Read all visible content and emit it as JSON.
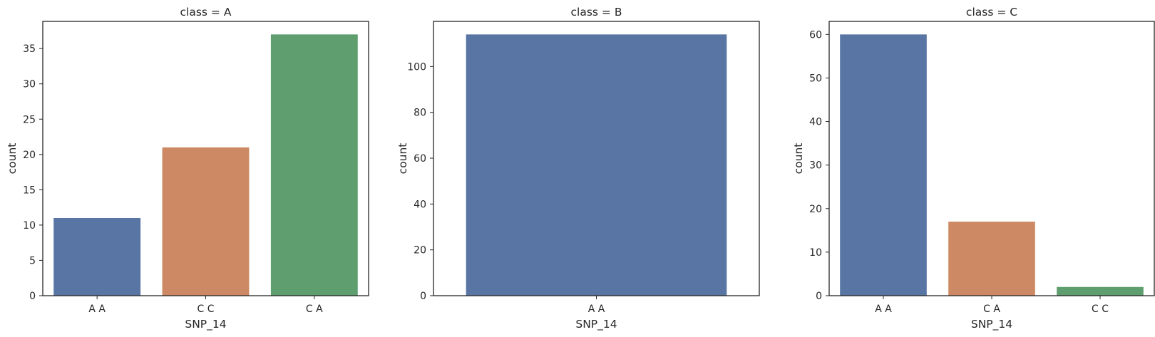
{
  "colors": {
    "AA": "#5875a4",
    "CC": "#cc8963",
    "CA": "#5f9e6e",
    "frame": "#262626",
    "text": "#262626"
  },
  "chart_data": [
    {
      "type": "bar",
      "title": "class = A",
      "xlabel": "SNP_14",
      "ylabel": "count",
      "categories": [
        "A A",
        "C C",
        "C A"
      ],
      "values": [
        11,
        21,
        37
      ],
      "bar_colors": [
        "#5875a4",
        "#cc8963",
        "#5f9e6e"
      ],
      "ylim": [
        0,
        38.85
      ],
      "yticks": [
        0,
        5,
        10,
        15,
        20,
        25,
        30,
        35
      ],
      "grid": false
    },
    {
      "type": "bar",
      "title": "class = B",
      "xlabel": "SNP_14",
      "ylabel": "count",
      "categories": [
        "A A"
      ],
      "values": [
        114
      ],
      "bar_colors": [
        "#5875a4"
      ],
      "ylim": [
        0,
        119.7
      ],
      "yticks": [
        0,
        20,
        40,
        60,
        80,
        100
      ],
      "grid": false
    },
    {
      "type": "bar",
      "title": "class = C",
      "xlabel": "SNP_14",
      "ylabel": "count",
      "categories": [
        "A A",
        "C A",
        "C C"
      ],
      "values": [
        60,
        17,
        2
      ],
      "bar_colors": [
        "#5875a4",
        "#cc8963",
        "#5f9e6e"
      ],
      "ylim": [
        0,
        63
      ],
      "yticks": [
        0,
        10,
        20,
        30,
        40,
        50,
        60
      ],
      "grid": false
    }
  ]
}
